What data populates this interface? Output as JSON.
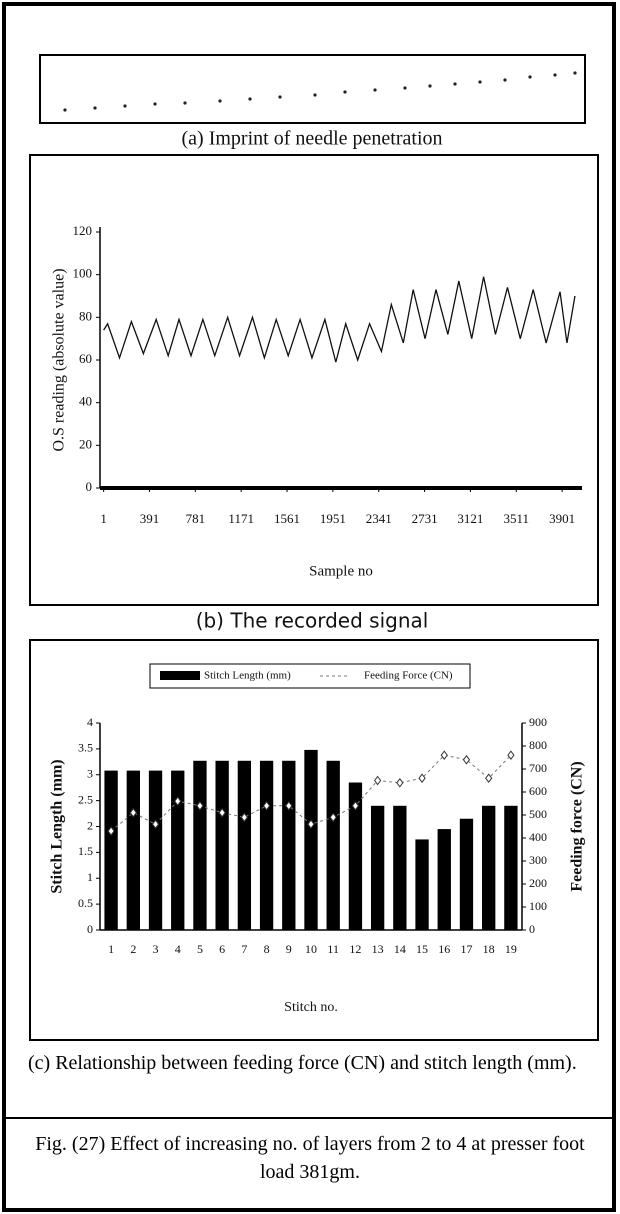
{
  "panel_a": {
    "caption": "(a)  Imprint of needle penetration"
  },
  "chart_data": [
    {
      "type": "line",
      "caption": "(b)  The recorded signal",
      "ylabel": "O.S reading (absolute value)",
      "xlabel": "Sample no",
      "x": [
        1,
        35,
        136,
        237,
        339,
        448,
        550,
        642,
        744,
        845,
        946,
        1056,
        1157,
        1267,
        1368,
        1469,
        1571,
        1672,
        1773,
        1883,
        1976,
        2060,
        2162,
        2263,
        2364,
        2448,
        2550,
        2634,
        2735,
        2828,
        2929,
        3022,
        3132,
        3233,
        3334,
        3436,
        3545,
        3655,
        3765,
        3883,
        3942,
        4010
      ],
      "series": [
        {
          "color": "#111111",
          "values": [
            74,
            77,
            61,
            78,
            63,
            79,
            62,
            79,
            62,
            79,
            62,
            80,
            62,
            80,
            61,
            79,
            62,
            79,
            61,
            79,
            59,
            77,
            60,
            77,
            64,
            86,
            68,
            93,
            70,
            93,
            72,
            97,
            70,
            99,
            72,
            94,
            70,
            93,
            68,
            92,
            68,
            90
          ]
        }
      ],
      "xlim": [
        -30,
        4070
      ],
      "xticks": [
        1,
        391,
        781,
        1171,
        1561,
        1951,
        2341,
        2731,
        3121,
        3511,
        3901
      ],
      "ylim": [
        0,
        120
      ],
      "yticks": [
        0,
        20,
        40,
        60,
        80,
        100,
        120
      ],
      "grid": false
    },
    {
      "type": "bar",
      "caption": "(c)  Relationship between feeding force (CN) and stitch length (mm).",
      "xlabel": "Stitch no.",
      "ylabel": "Stitch Length (mm)",
      "y2label": "Feeding force (CN)",
      "categories": [
        "1",
        "2",
        "3",
        "4",
        "5",
        "6",
        "7",
        "8",
        "9",
        "10",
        "11",
        "12",
        "13",
        "14",
        "15",
        "16",
        "17",
        "18",
        "19"
      ],
      "series": [
        {
          "name": "Stitch Length (mm)",
          "type": "bar",
          "color": "#000000",
          "values": [
            3.08,
            3.08,
            3.08,
            3.08,
            3.27,
            3.27,
            3.27,
            3.27,
            3.27,
            3.48,
            3.27,
            2.85,
            2.4,
            2.4,
            1.75,
            1.95,
            2.15,
            2.4,
            2.4
          ]
        },
        {
          "name": "Feeding Force (CN)",
          "type": "line",
          "axis": "y2",
          "color": "#777777",
          "values": [
            430,
            510,
            460,
            560,
            540,
            510,
            490,
            540,
            540,
            460,
            490,
            540,
            650,
            640,
            660,
            760,
            740,
            660,
            760
          ]
        }
      ],
      "ylim": [
        0,
        4
      ],
      "yticks": [
        0,
        0.5,
        1,
        1.5,
        2,
        2.5,
        3,
        3.5,
        4
      ],
      "y2lim": [
        0,
        900
      ],
      "y2ticks": [
        0,
        100,
        200,
        300,
        400,
        500,
        600,
        700,
        800,
        900
      ],
      "legend": "top",
      "grid": false
    }
  ],
  "figure_caption": "Fig. (27) Effect of increasing no. of layers from 2 to 4 at presser foot load 381gm."
}
